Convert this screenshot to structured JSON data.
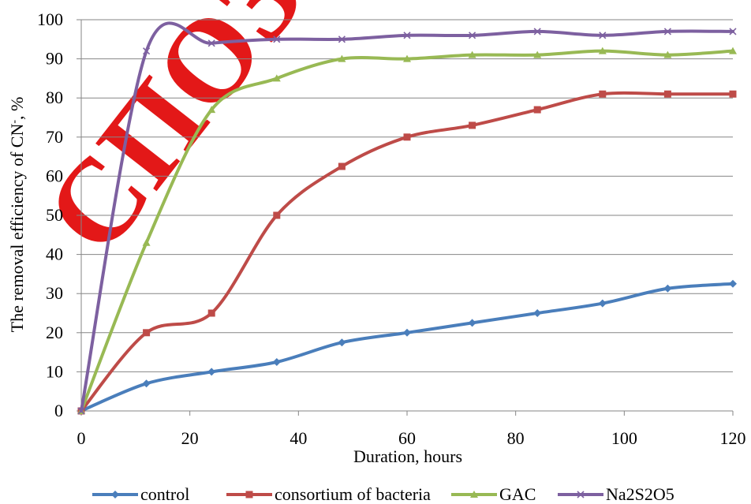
{
  "watermark": {
    "text": "СПОЗИТ",
    "color": "#e00000"
  },
  "chart_data": {
    "type": "line",
    "title": "",
    "xlabel": "Duration, hours",
    "ylabel_main": "The removal efficiency of CN",
    "ylabel_sup": "-",
    "ylabel_tail": ", %",
    "xlim": [
      0,
      120
    ],
    "ylim": [
      0,
      100
    ],
    "xticks": [
      0,
      20,
      40,
      60,
      80,
      100,
      120
    ],
    "yticks": [
      0,
      10,
      20,
      30,
      40,
      50,
      60,
      70,
      80,
      90,
      100
    ],
    "grid": "horizontal",
    "legend_position": "bottom",
    "x": [
      0,
      12,
      24,
      36,
      48,
      60,
      72,
      84,
      96,
      108,
      120
    ],
    "series": [
      {
        "name": "control",
        "color": "#4a7ebb",
        "marker": "diamond",
        "values": [
          0,
          7,
          10,
          12.5,
          17.5,
          20,
          22.5,
          25,
          27.5,
          31.3,
          32.5
        ]
      },
      {
        "name": "consortium of bacteria",
        "color": "#be4b48",
        "marker": "square",
        "values": [
          0,
          20,
          25,
          50,
          62.5,
          70,
          73,
          77,
          81,
          81,
          81
        ]
      },
      {
        "name": "GAC",
        "color": "#98b954",
        "marker": "triangle",
        "values": [
          0,
          43,
          77,
          85,
          90,
          90,
          91,
          91,
          92,
          91,
          92
        ]
      },
      {
        "name": "Na2S2O5",
        "color": "#7d60a0",
        "marker": "cross",
        "values": [
          0,
          92,
          94,
          95,
          95,
          96,
          96,
          97,
          96,
          97,
          97
        ]
      }
    ]
  }
}
